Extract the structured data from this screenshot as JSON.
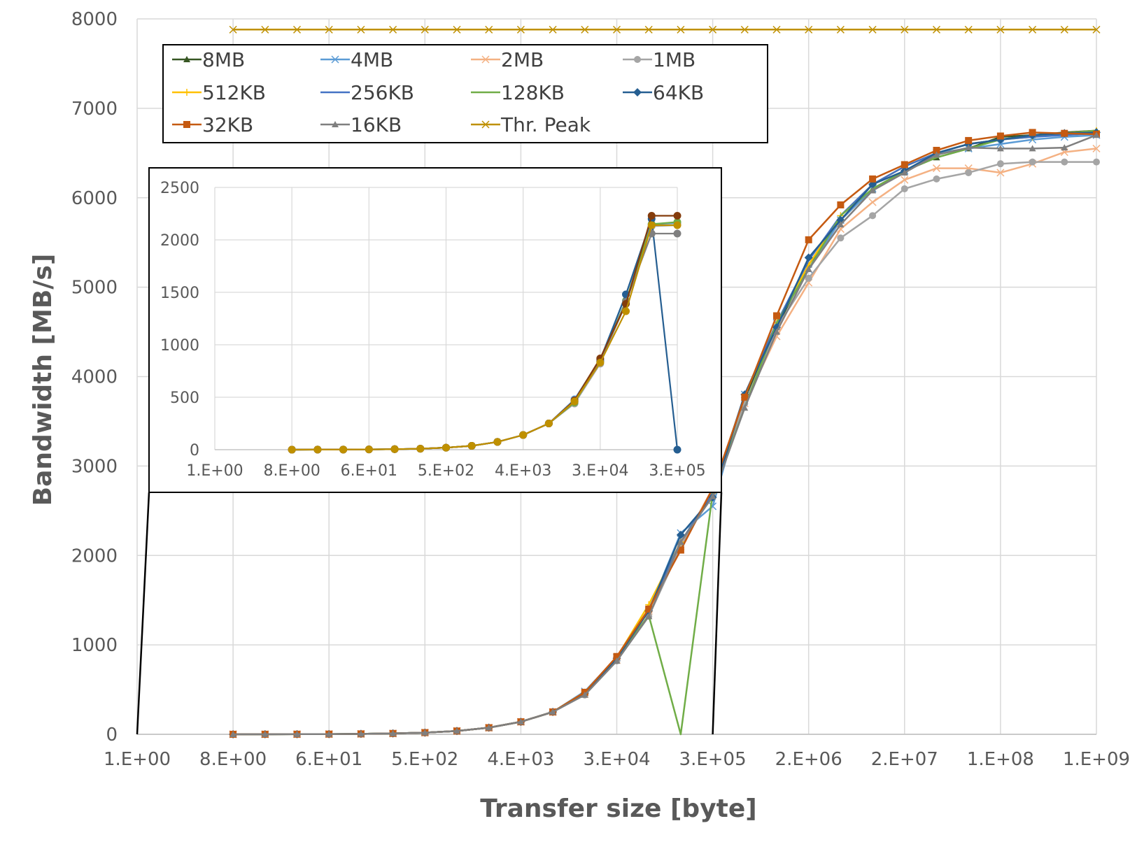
{
  "chart_data": {
    "type": "line",
    "xlabel": "Transfer size [byte]",
    "ylabel": "Bandwidth [MB/s]",
    "x_scale": "log2",
    "xlim": [
      1,
      1073741824
    ],
    "ylim": [
      0,
      8000
    ],
    "y_ticks": [
      "0",
      "1000",
      "2000",
      "3000",
      "4000",
      "5000",
      "6000",
      "7000",
      "8000"
    ],
    "x_tick_labels": [
      "1.E+00",
      "8.E+00",
      "6.E+01",
      "5.E+02",
      "4.E+03",
      "3.E+04",
      "3.E+05",
      "2.E+06",
      "2.E+07",
      "1.E+08",
      "1.E+09"
    ],
    "x": [
      8,
      16,
      32,
      64,
      128,
      256,
      512,
      1024,
      2048,
      4096,
      8192,
      16384,
      32768,
      65536,
      131072,
      262144,
      524288,
      1048576,
      2097152,
      4194304,
      8388608,
      16777216,
      33554432,
      67108864,
      134217728,
      268435456,
      536870912,
      1073741824
    ],
    "grid": true,
    "legend_position": "top-left",
    "series": [
      {
        "name": "8MB",
        "color": "#375623",
        "marker": "triangle",
        "values": [
          0.3,
          0.6,
          1.2,
          2.4,
          4.8,
          9.5,
          19,
          37,
          74,
          140,
          250,
          470,
          850,
          1320,
          2150,
          2700,
          3750,
          4550,
          5250,
          5750,
          6100,
          6300,
          6450,
          6550,
          6680,
          6700,
          6730,
          6750
        ]
      },
      {
        "name": "4MB",
        "color": "#5B9BD5",
        "marker": "x",
        "values": [
          0.3,
          0.6,
          1.2,
          2.4,
          4.8,
          9.5,
          19,
          37,
          74,
          140,
          250,
          480,
          860,
          1380,
          2250,
          2550,
          3800,
          4600,
          5200,
          5750,
          6100,
          6300,
          6500,
          6550,
          6600,
          6650,
          6680,
          6700
        ]
      },
      {
        "name": "2MB",
        "color": "#F4B183",
        "marker": "x",
        "values": [
          0.3,
          0.6,
          1.2,
          2.4,
          4.8,
          9.5,
          19,
          37,
          74,
          140,
          250,
          450,
          830,
          1380,
          2100,
          2750,
          3700,
          4450,
          5050,
          5650,
          5950,
          6200,
          6330,
          6330,
          6280,
          6380,
          6510,
          6550
        ]
      },
      {
        "name": "1MB",
        "color": "#A5A5A5",
        "marker": "circle",
        "values": [
          0.3,
          0.6,
          1.2,
          2.4,
          4.8,
          9.5,
          19,
          37,
          74,
          140,
          250,
          440,
          820,
          1320,
          2100,
          2700,
          3700,
          4550,
          5100,
          5550,
          5800,
          6100,
          6210,
          6280,
          6380,
          6400,
          6400,
          6400
        ]
      },
      {
        "name": "512KB",
        "color": "#FFC000",
        "marker": "plus",
        "values": [
          0.3,
          0.6,
          1.2,
          2.4,
          4.8,
          9.5,
          19,
          37,
          74,
          140,
          250,
          470,
          860,
          1450,
          2150,
          2700,
          3800,
          4600,
          5250,
          5800,
          6150,
          6350,
          6500,
          6600,
          6650,
          6680,
          6720,
          6750
        ]
      },
      {
        "name": "256KB",
        "color": "#4472C4",
        "marker": "none",
        "values": [
          0.3,
          0.6,
          1.2,
          2.4,
          4.8,
          9.5,
          19,
          37,
          74,
          140,
          250,
          460,
          850,
          1400,
          2150,
          2700,
          3800,
          4600,
          5300,
          5800,
          6150,
          6350,
          6500,
          6600,
          6650,
          6680,
          6700,
          6720
        ]
      },
      {
        "name": "128KB",
        "color": "#70AD47",
        "marker": "none",
        "values": [
          0.3,
          0.6,
          1.2,
          2.4,
          4.8,
          9.5,
          19,
          37,
          74,
          140,
          250,
          460,
          850,
          1330,
          0,
          2700,
          3650,
          4600,
          5200,
          5800,
          6100,
          6300,
          6450,
          6550,
          6650,
          6700,
          6720,
          6750
        ]
      },
      {
        "name": "64KB",
        "color": "#255E91",
        "marker": "diamond",
        "values": [
          0.3,
          0.6,
          1.2,
          2.4,
          4.8,
          9.5,
          19,
          37,
          74,
          140,
          250,
          460,
          850,
          1380,
          2230,
          2650,
          3800,
          4550,
          5330,
          5750,
          6150,
          6300,
          6500,
          6600,
          6650,
          6700,
          6720,
          6730
        ]
      },
      {
        "name": "32KB",
        "color": "#C55A11",
        "marker": "square",
        "values": [
          0.3,
          0.6,
          1.2,
          2.4,
          4.8,
          9.5,
          19,
          37,
          74,
          140,
          250,
          470,
          870,
          1400,
          2060,
          2750,
          3770,
          4680,
          5530,
          5920,
          6210,
          6370,
          6530,
          6640,
          6690,
          6730,
          6720,
          6710
        ]
      },
      {
        "name": "16KB",
        "color": "#7F7F7F",
        "marker": "triangle",
        "values": [
          0.3,
          0.6,
          1.2,
          2.4,
          4.8,
          9.5,
          19,
          37,
          74,
          140,
          250,
          440,
          820,
          1320,
          2150,
          2660,
          3650,
          4500,
          5200,
          5700,
          6080,
          6280,
          6480,
          6560,
          6550,
          6550,
          6560,
          6700
        ]
      },
      {
        "name": "Thr. Peak",
        "color": "#BF9000",
        "marker": "x",
        "values": [
          7880,
          7880,
          7880,
          7880,
          7880,
          7880,
          7880,
          7880,
          7880,
          7880,
          7880,
          7880,
          7880,
          7880,
          7880,
          7880,
          7880,
          7880,
          7880,
          7880,
          7880,
          7880,
          7880,
          7880,
          7880,
          7880,
          7880,
          7880
        ]
      }
    ],
    "inset": {
      "xlim": [
        1,
        262144
      ],
      "ylim": [
        0,
        2500
      ],
      "y_ticks": [
        "0",
        "500",
        "1000",
        "1500",
        "2000",
        "2500"
      ],
      "x_tick_labels": [
        "1.E+00",
        "8.E+00",
        "6.E+01",
        "5.E+02",
        "4.E+03",
        "3.E+04",
        "3.E+05"
      ],
      "x": [
        8,
        16,
        32,
        64,
        128,
        256,
        512,
        1024,
        2048,
        4096,
        8192,
        16384,
        32768,
        65536,
        131072,
        262144
      ],
      "series": [
        {
          "color": "#5B9BD5",
          "values": [
            0.3,
            0.6,
            1.2,
            2.4,
            4.8,
            9.5,
            19,
            37,
            74,
            140,
            250,
            480,
            860,
            1480,
            2150,
            2160
          ]
        },
        {
          "color": "#A5A5A5",
          "values": [
            0.3,
            0.6,
            1.2,
            2.4,
            4.8,
            9.5,
            19,
            37,
            74,
            140,
            250,
            440,
            820,
            1400,
            2130,
            2140
          ]
        },
        {
          "color": "#70AD47",
          "values": [
            0.3,
            0.6,
            1.2,
            2.4,
            4.8,
            9.5,
            19,
            37,
            74,
            140,
            250,
            450,
            840,
            1420,
            2150,
            2170
          ]
        },
        {
          "color": "#255E91",
          "values": [
            0.3,
            0.6,
            1.2,
            2.4,
            4.8,
            9.5,
            19,
            37,
            74,
            140,
            250,
            460,
            850,
            1480,
            2200,
            0
          ]
        },
        {
          "color": "#7F7F7F",
          "values": [
            0.3,
            0.6,
            1.2,
            2.4,
            4.8,
            9.5,
            19,
            37,
            74,
            140,
            250,
            460,
            840,
            1410,
            2060,
            2060
          ]
        },
        {
          "color": "#843C0C",
          "values": [
            0.3,
            0.6,
            1.2,
            2.4,
            4.8,
            9.5,
            19,
            37,
            74,
            140,
            250,
            470,
            870,
            1390,
            2230,
            2230
          ]
        },
        {
          "color": "#BF9000",
          "values": [
            0.3,
            0.6,
            1.2,
            2.4,
            4.8,
            9.5,
            19,
            37,
            74,
            140,
            250,
            460,
            830,
            1320,
            2140,
            2140
          ]
        }
      ]
    }
  }
}
